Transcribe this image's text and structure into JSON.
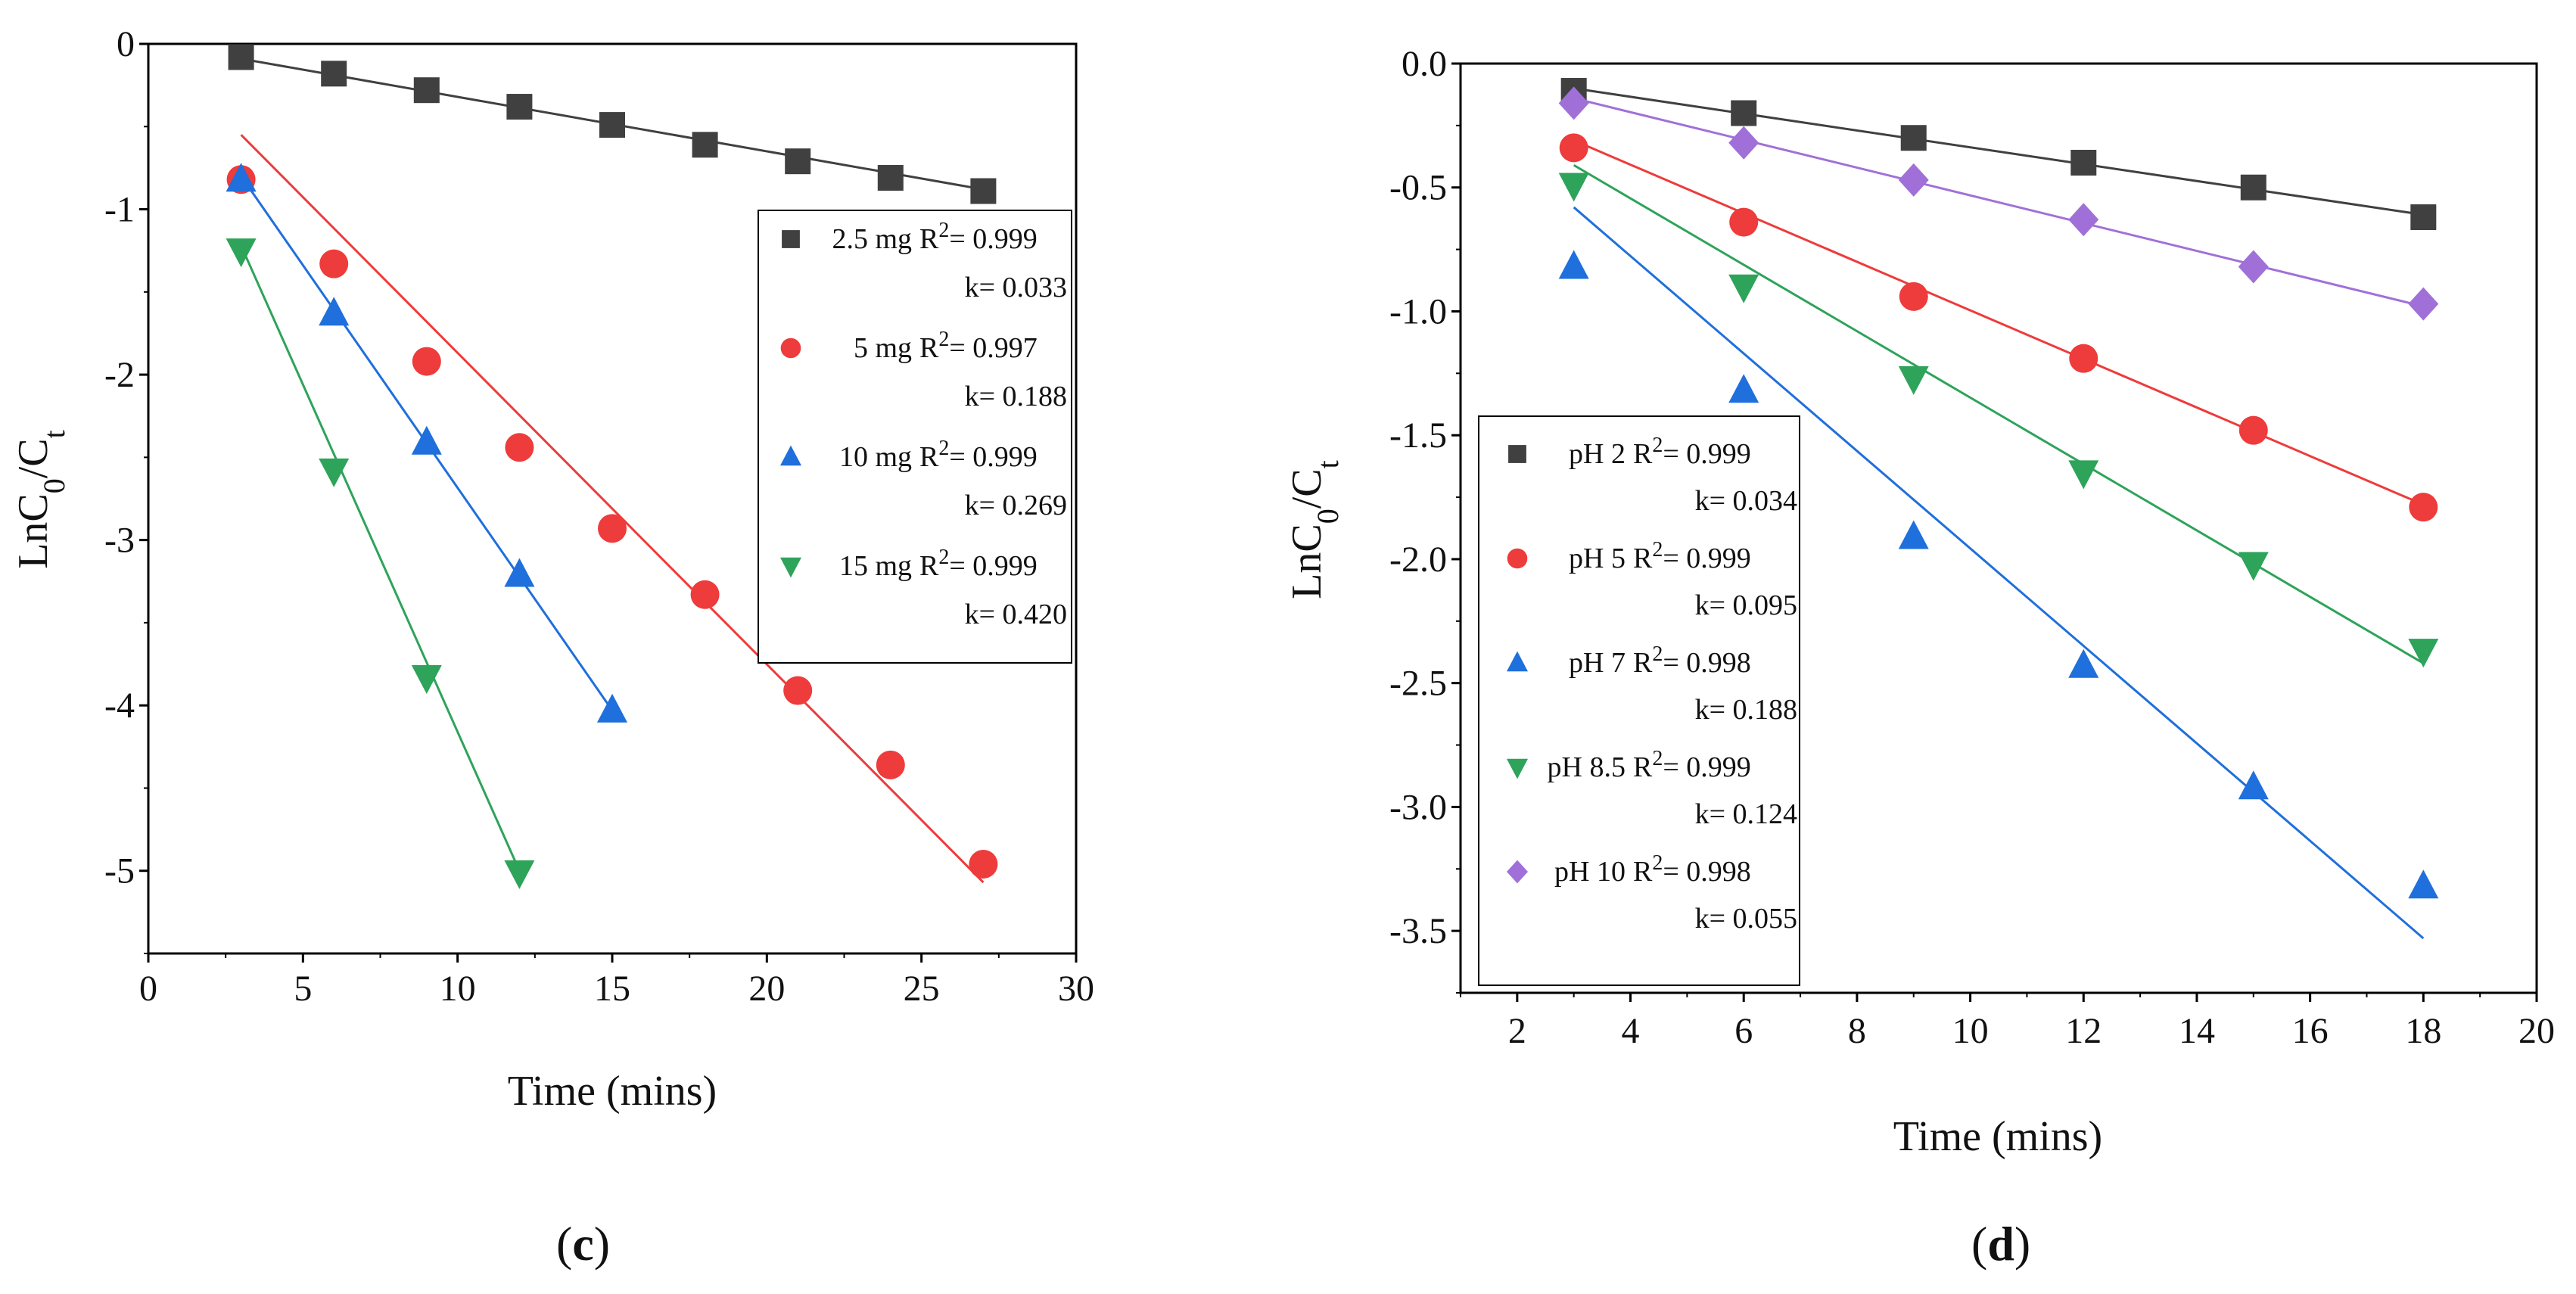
{
  "chart_data": [
    {
      "id": "c",
      "type": "scatter",
      "panel_label": "c",
      "xlabel": "Time (mins)",
      "ylabel": "LnC0/Ct",
      "xlim": [
        0,
        30
      ],
      "ylim": [
        -5.5,
        0
      ],
      "xticks": [
        0,
        5,
        10,
        15,
        20,
        25,
        30
      ],
      "xtick_labels": [
        "0",
        "5",
        "10",
        "15",
        "20",
        "25",
        "30"
      ],
      "yticks": [
        0,
        -1,
        -2,
        -3,
        -4,
        -5
      ],
      "ytick_labels": [
        "0",
        "-1",
        "-2",
        "-3",
        "-4",
        "-5"
      ],
      "legend_position": "right",
      "series": [
        {
          "name": "2.5 mg",
          "marker": "square",
          "color": "#404040",
          "r2_text": "R2= 0.999",
          "k_text": "k= 0.033",
          "x": [
            3,
            6,
            9,
            12,
            15,
            18,
            21,
            24,
            27
          ],
          "y": [
            -0.08,
            -0.18,
            -0.28,
            -0.38,
            -0.49,
            -0.61,
            -0.71,
            -0.81,
            -0.89
          ],
          "fit": [
            [
              3,
              -0.09
            ],
            [
              27,
              -0.88
            ]
          ]
        },
        {
          "name": "5 mg",
          "marker": "circle",
          "color": "#ee3b3b",
          "r2_text": "R2= 0.997",
          "k_text": "k= 0.188",
          "x": [
            3,
            6,
            9,
            12,
            15,
            18,
            21,
            24,
            27
          ],
          "y": [
            -0.82,
            -1.33,
            -1.92,
            -2.44,
            -2.93,
            -3.33,
            -3.91,
            -4.36,
            -4.96
          ],
          "fit": [
            [
              3,
              -0.55
            ],
            [
              27,
              -5.07
            ]
          ]
        },
        {
          "name": "10 mg",
          "marker": "triangle-up",
          "color": "#1f6fdc",
          "r2_text": "R2= 0.999",
          "k_text": "k= 0.269",
          "x": [
            3,
            6,
            9,
            12,
            15
          ],
          "y": [
            -0.82,
            -1.63,
            -2.41,
            -3.21,
            -4.03
          ],
          "fit": [
            [
              3,
              -0.8
            ],
            [
              15,
              -4.03
            ]
          ]
        },
        {
          "name": "15 mg",
          "marker": "triangle-down",
          "color": "#2ea35a",
          "r2_text": "R2= 0.999",
          "k_text": "k= 0.420",
          "x": [
            3,
            6,
            9,
            12
          ],
          "y": [
            -1.25,
            -2.58,
            -3.83,
            -5.01
          ],
          "fit": [
            [
              3,
              -1.22
            ],
            [
              12,
              -5.0
            ]
          ]
        }
      ]
    },
    {
      "id": "d",
      "type": "scatter",
      "panel_label": "d",
      "xlabel": "Time (mins)",
      "ylabel": "LnC0/Ct",
      "xlim": [
        1,
        20
      ],
      "ylim": [
        -3.75,
        0
      ],
      "xticks": [
        2,
        4,
        6,
        8,
        10,
        12,
        14,
        16,
        18,
        20
      ],
      "xtick_labels": [
        "2",
        "4",
        "6",
        "8",
        "10",
        "12",
        "14",
        "16",
        "18",
        "20"
      ],
      "yticks": [
        0,
        -0.5,
        -1,
        -1.5,
        -2,
        -2.5,
        -3,
        -3.5
      ],
      "ytick_labels": [
        "0.0",
        "-0.5",
        "-1.0",
        "-1.5",
        "-2.0",
        "-2.5",
        "-3.0",
        "-3.5"
      ],
      "legend_position": "bottom-left",
      "series": [
        {
          "name": "pH 2",
          "marker": "square",
          "color": "#404040",
          "r2_text": "R2= 0.999",
          "k_text": "k= 0.034",
          "x": [
            3,
            6,
            9,
            12,
            15,
            18
          ],
          "y": [
            -0.11,
            -0.2,
            -0.3,
            -0.4,
            -0.5,
            -0.62
          ],
          "fit": [
            [
              3,
              -0.1
            ],
            [
              18,
              -0.61
            ]
          ]
        },
        {
          "name": "pH 5",
          "marker": "circle",
          "color": "#ee3b3b",
          "r2_text": "R2= 0.999",
          "k_text": "k= 0.095",
          "x": [
            3,
            6,
            9,
            12,
            15,
            18
          ],
          "y": [
            -0.34,
            -0.64,
            -0.94,
            -1.19,
            -1.48,
            -1.79
          ],
          "fit": [
            [
              3,
              -0.31
            ],
            [
              18,
              -1.78
            ]
          ]
        },
        {
          "name": "pH 7",
          "marker": "triangle-up",
          "color": "#1f6fdc",
          "r2_text": "R2= 0.998",
          "k_text": "k= 0.188",
          "x": [
            3,
            6,
            9,
            12,
            15,
            18
          ],
          "y": [
            -0.82,
            -1.32,
            -1.91,
            -2.43,
            -2.92,
            -3.32
          ],
          "fit": [
            [
              3,
              -0.58
            ],
            [
              18,
              -3.53
            ]
          ]
        },
        {
          "name": "pH 8.5",
          "marker": "triangle-down",
          "color": "#2ea35a",
          "r2_text": "R2= 0.999",
          "k_text": "k= 0.124",
          "x": [
            3,
            6,
            9,
            12,
            15,
            18
          ],
          "y": [
            -0.49,
            -0.9,
            -1.27,
            -1.65,
            -2.02,
            -2.37
          ],
          "fit": [
            [
              3,
              -0.41
            ],
            [
              18,
              -2.42
            ]
          ]
        },
        {
          "name": "pH 10",
          "marker": "diamond",
          "color": "#a070d8",
          "r2_text": "R2= 0.998",
          "k_text": "k= 0.055",
          "x": [
            3,
            6,
            9,
            12,
            15,
            18
          ],
          "y": [
            -0.16,
            -0.32,
            -0.47,
            -0.63,
            -0.82,
            -0.97
          ],
          "fit": [
            [
              3,
              -0.14
            ],
            [
              18,
              -0.98
            ]
          ]
        }
      ]
    }
  ]
}
